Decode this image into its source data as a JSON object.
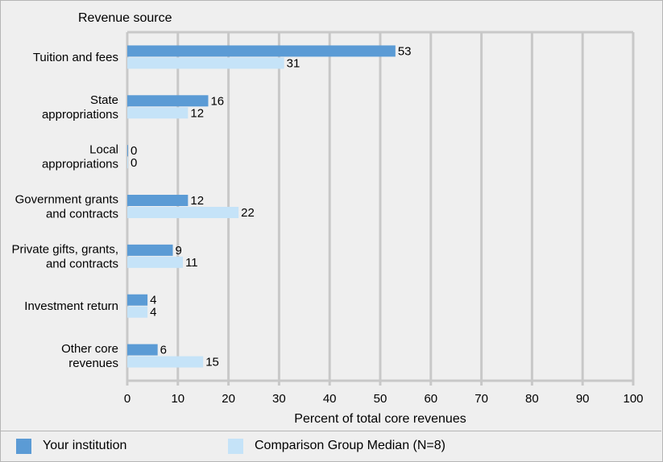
{
  "chart_data": {
    "type": "bar",
    "orientation": "horizontal",
    "title": "Revenue source",
    "xlabel": "Percent of total core revenues",
    "xlim": [
      0,
      100
    ],
    "xticks": [
      0,
      10,
      20,
      30,
      40,
      50,
      60,
      70,
      80,
      90,
      100
    ],
    "grid": true,
    "legend_position": "bottom",
    "categories": [
      [
        "Tuition and fees"
      ],
      [
        "State",
        "appropriations"
      ],
      [
        "Local",
        "appropriations"
      ],
      [
        "Government grants",
        "and contracts"
      ],
      [
        "Private gifts, grants,",
        "and contracts"
      ],
      [
        "Investment return"
      ],
      [
        "Other core",
        "revenues"
      ]
    ],
    "series": [
      {
        "name": "Your institution",
        "color": "#5b9bd5",
        "values": [
          53,
          16,
          0,
          12,
          9,
          4,
          6
        ]
      },
      {
        "name": "Comparison Group Median (N=8)",
        "color": "#c5e3f8",
        "values": [
          31,
          12,
          0,
          22,
          11,
          4,
          15
        ]
      }
    ]
  },
  "legend": {
    "items": [
      {
        "label": "Your institution",
        "color": "#5b9bd5"
      },
      {
        "label": "Comparison Group Median (N=8)",
        "color": "#c5e3f8"
      }
    ]
  }
}
